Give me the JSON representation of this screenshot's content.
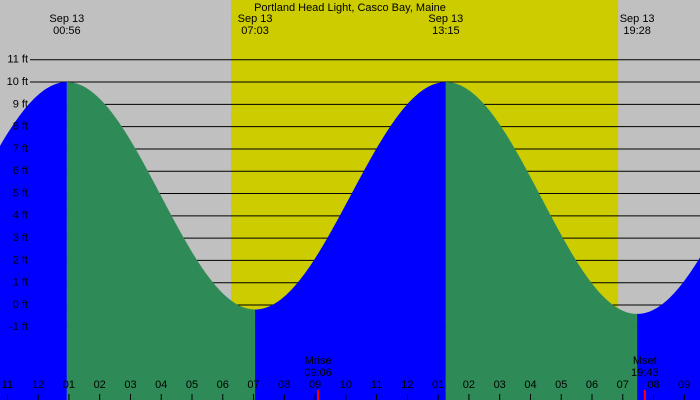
{
  "chart_data": {
    "type": "tide",
    "title": "Portland Head Light, Casco Bay, Maine",
    "extremes": [
      {
        "date": "Sep 13",
        "time": "00:56",
        "height": 10.0
      },
      {
        "date": "Sep 13",
        "time": "07:03",
        "height": -0.2
      },
      {
        "date": "Sep 13",
        "time": "13:15",
        "height": 10.0
      },
      {
        "date": "Sep 13",
        "time": "19:28",
        "height": -0.4
      }
    ],
    "moon": [
      {
        "label": "Mrise",
        "time": "09:06"
      },
      {
        "label": "Mset",
        "time": "19:43"
      }
    ],
    "daylight": [
      6.27,
      18.85
    ],
    "xlim": [
      -1.24,
      21.51
    ],
    "ylim": [
      -4.26,
      13.68
    ],
    "xticks": [
      {
        "value": -1,
        "label": "11"
      },
      {
        "value": 0,
        "label": "12"
      },
      {
        "value": 1,
        "label": "01"
      },
      {
        "value": 2,
        "label": "02"
      },
      {
        "value": 3,
        "label": "03"
      },
      {
        "value": 4,
        "label": "04"
      },
      {
        "value": 5,
        "label": "05"
      },
      {
        "value": 6,
        "label": "06"
      },
      {
        "value": 7,
        "label": "07"
      },
      {
        "value": 8,
        "label": "08"
      },
      {
        "value": 9,
        "label": "09"
      },
      {
        "value": 10,
        "label": "10"
      },
      {
        "value": 11,
        "label": "11"
      },
      {
        "value": 12,
        "label": "12"
      },
      {
        "value": 13,
        "label": "01"
      },
      {
        "value": 14,
        "label": "02"
      },
      {
        "value": 15,
        "label": "03"
      },
      {
        "value": 16,
        "label": "04"
      },
      {
        "value": 17,
        "label": "05"
      },
      {
        "value": 18,
        "label": "06"
      },
      {
        "value": 19,
        "label": "07"
      },
      {
        "value": 20,
        "label": "08"
      },
      {
        "value": 21,
        "label": "09"
      }
    ],
    "yticks": [
      {
        "value": 11,
        "label": "11 ft"
      },
      {
        "value": 10,
        "label": "10 ft"
      },
      {
        "value": 9,
        "label": "9 ft"
      },
      {
        "value": 8,
        "label": "8 ft"
      },
      {
        "value": 7,
        "label": "7 ft"
      },
      {
        "value": 6,
        "label": "6 ft"
      },
      {
        "value": 5,
        "label": "5 ft"
      },
      {
        "value": 4,
        "label": "4 ft"
      },
      {
        "value": 3,
        "label": "3 ft"
      },
      {
        "value": 2,
        "label": "2 ft"
      },
      {
        "value": 1,
        "label": "1 ft"
      },
      {
        "value": 0,
        "label": "0 ft"
      },
      {
        "value": -1,
        "label": "-1 ft"
      }
    ],
    "grid": true,
    "colors": {
      "background": "#c0c0c0",
      "daylight": "#cccc00",
      "rising": "#0000ff",
      "falling": "#2e8b57",
      "moon": "#ff0000"
    }
  }
}
